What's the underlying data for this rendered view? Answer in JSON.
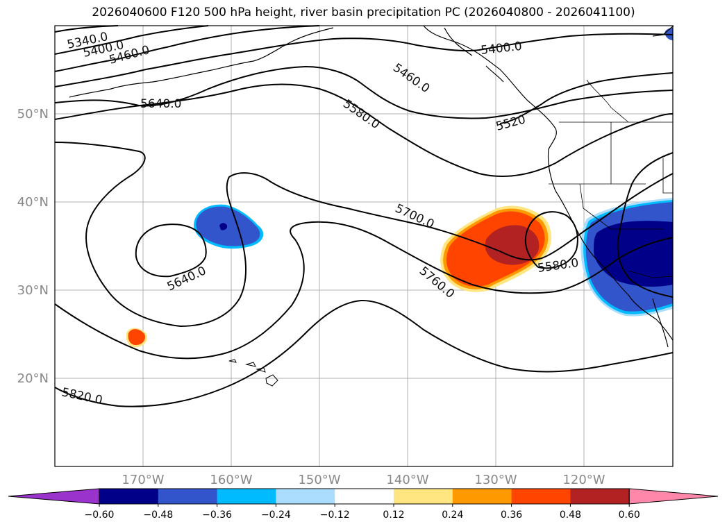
{
  "title": "2026040600 F120 500 hPa height, river basin precipitation PC (2026040800 - 2026041100)",
  "map": {
    "lon_range": [
      -180,
      -110
    ],
    "lat_range": [
      10,
      60
    ],
    "lon_ticks": [
      {
        "value": -170,
        "label": "170°W"
      },
      {
        "value": -160,
        "label": "160°W"
      },
      {
        "value": -150,
        "label": "150°W"
      },
      {
        "value": -140,
        "label": "140°W"
      },
      {
        "value": -130,
        "label": "130°W"
      },
      {
        "value": -120,
        "label": "120°W"
      }
    ],
    "lat_ticks": [
      {
        "value": 20,
        "label": "20°N"
      },
      {
        "value": 30,
        "label": "30°N"
      },
      {
        "value": 40,
        "label": "40°N"
      },
      {
        "value": 50,
        "label": "50°N"
      }
    ],
    "contour_labels": [
      {
        "text": "5340.0"
      },
      {
        "text": "5400.0"
      },
      {
        "text": "5460.0"
      },
      {
        "text": "5640.0"
      },
      {
        "text": "5400.0"
      },
      {
        "text": "5460.0"
      },
      {
        "text": "5580.0"
      },
      {
        "text": "5520"
      },
      {
        "text": "5700.0"
      },
      {
        "text": "5760.0"
      },
      {
        "text": "5580.0"
      },
      {
        "text": "5640.0"
      },
      {
        "text": "5820.0"
      }
    ]
  },
  "colorbar": {
    "levels": [
      "-0.60",
      "-0.48",
      "-0.36",
      "-0.24",
      "-0.12",
      "0.12",
      "0.24",
      "0.36",
      "0.48",
      "0.60"
    ],
    "colors": [
      "#9933cc",
      "#000088",
      "#3355cc",
      "#00bbff",
      "#aaddff",
      "#ffffff",
      "#ffe680",
      "#ff9900",
      "#ff4400",
      "#b22222",
      "#ff88aa"
    ]
  }
}
